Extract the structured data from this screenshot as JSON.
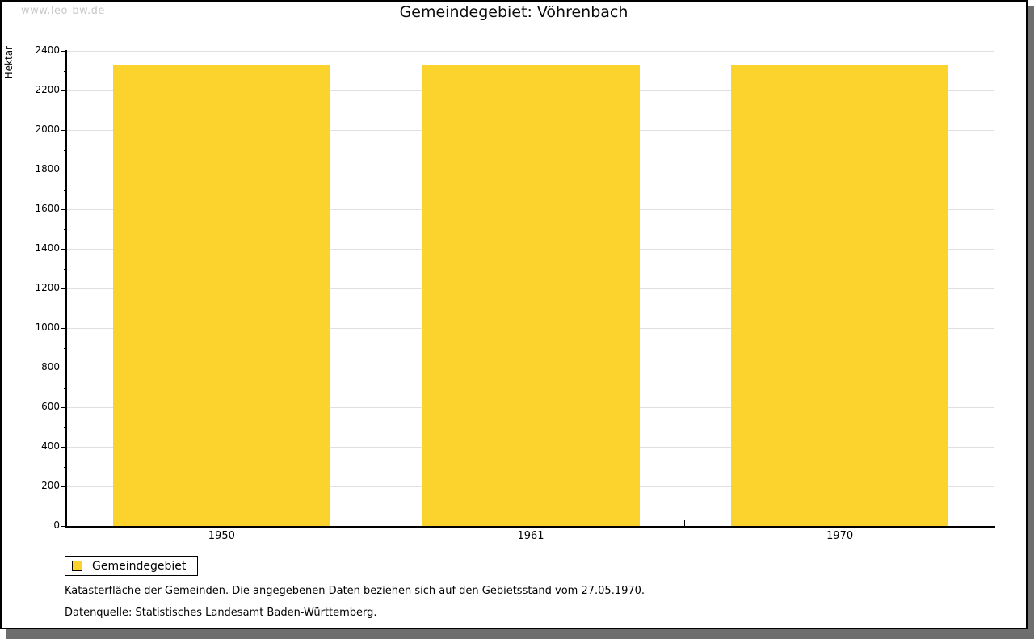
{
  "watermark": "www.leo-bw.de",
  "chart_data": {
    "type": "bar",
    "title": "Gemeindegebiet: Vöhrenbach",
    "categories": [
      "1950",
      "1961",
      "1970"
    ],
    "series": [
      {
        "name": "Gemeindegebiet",
        "values": [
          2328,
          2328,
          2328
        ],
        "color": "#fcd32c"
      }
    ],
    "xlabel": "",
    "ylabel": "Hektar",
    "ylim": [
      0,
      2400
    ],
    "ytick_major": 200,
    "ytick_minor": 100,
    "grid": true,
    "legend_position": "bottom-left"
  },
  "colors": {
    "bar": "#fcd32c",
    "gridline": "#e0e0e0",
    "axis": "#000000",
    "shadow": "#6e6e6e",
    "watermark": "#c8c8c8"
  },
  "footer": {
    "line1": "Katasterfläche der Gemeinden. Die angegebenen Daten beziehen sich auf den Gebietsstand vom 27.05.1970.",
    "line2": "Datenquelle: Statistisches Landesamt Baden-Württemberg."
  }
}
